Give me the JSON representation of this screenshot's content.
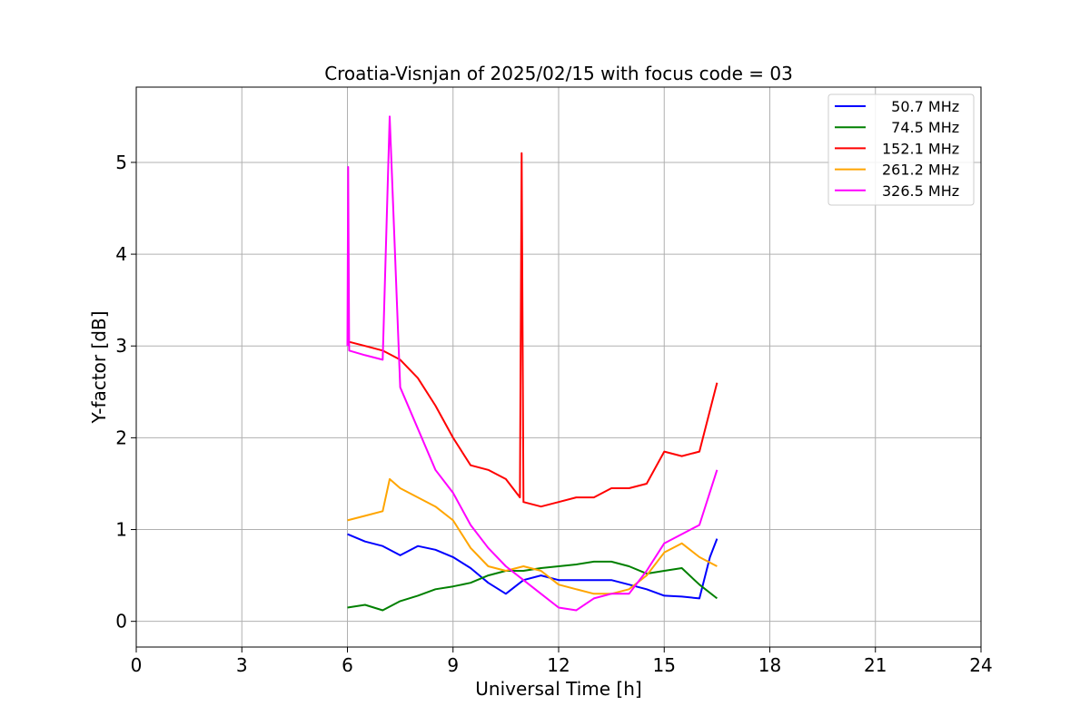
{
  "chart_data": {
    "type": "line",
    "title": "Croatia-Visnjan of 2025/02/15 with focus code = 03",
    "xlabel": "Universal Time [h]",
    "ylabel": "Y-factor [dB]",
    "xlim": [
      0,
      24
    ],
    "ylim": [
      -0.28,
      5.82
    ],
    "xticks": [
      0,
      3,
      6,
      9,
      12,
      15,
      18,
      21,
      24
    ],
    "xtick_labels": [
      "0",
      "3",
      "6",
      "9",
      "12",
      "15",
      "18",
      "21",
      "24"
    ],
    "yticks": [
      0,
      1,
      2,
      3,
      4,
      5
    ],
    "ytick_labels": [
      "0",
      "1",
      "2",
      "3",
      "4",
      "5"
    ],
    "grid": true,
    "legend_position": "top-right",
    "series": [
      {
        "name": "  50.7 MHz",
        "color": "#0000ff",
        "x": [
          6.0,
          6.5,
          7.0,
          7.5,
          8.0,
          8.5,
          9.0,
          9.5,
          10.0,
          10.5,
          11.0,
          11.5,
          12.0,
          12.5,
          13.0,
          13.5,
          14.0,
          14.5,
          15.0,
          15.5,
          16.0,
          16.3,
          16.5
        ],
        "y": [
          0.95,
          0.87,
          0.82,
          0.72,
          0.82,
          0.78,
          0.7,
          0.58,
          0.42,
          0.3,
          0.45,
          0.5,
          0.45,
          0.45,
          0.45,
          0.45,
          0.4,
          0.35,
          0.28,
          0.27,
          0.25,
          0.7,
          0.9
        ]
      },
      {
        "name": "  74.5 MHz",
        "color": "#008000",
        "x": [
          6.0,
          6.5,
          7.0,
          7.5,
          8.0,
          8.5,
          9.0,
          9.5,
          10.0,
          10.5,
          11.0,
          11.5,
          12.0,
          12.5,
          13.0,
          13.5,
          14.0,
          14.5,
          15.0,
          15.5,
          16.0,
          16.5
        ],
        "y": [
          0.15,
          0.18,
          0.12,
          0.22,
          0.28,
          0.35,
          0.38,
          0.42,
          0.5,
          0.55,
          0.55,
          0.58,
          0.6,
          0.62,
          0.65,
          0.65,
          0.6,
          0.52,
          0.55,
          0.58,
          0.4,
          0.25
        ]
      },
      {
        "name": "152.1 MHz",
        "color": "#ff0000",
        "x": [
          6.0,
          6.5,
          7.0,
          7.5,
          8.0,
          8.5,
          9.0,
          9.5,
          10.0,
          10.5,
          10.9,
          10.95,
          11.0,
          11.5,
          12.0,
          12.5,
          13.0,
          13.5,
          14.0,
          14.5,
          15.0,
          15.5,
          16.0,
          16.5
        ],
        "y": [
          3.05,
          3.0,
          2.95,
          2.85,
          2.65,
          2.35,
          2.0,
          1.7,
          1.65,
          1.55,
          1.35,
          5.1,
          1.3,
          1.25,
          1.3,
          1.35,
          1.35,
          1.45,
          1.45,
          1.5,
          1.85,
          1.8,
          1.85,
          2.6
        ]
      },
      {
        "name": "261.2 MHz",
        "color": "#ffa500",
        "x": [
          6.0,
          6.5,
          7.0,
          7.2,
          7.5,
          8.0,
          8.5,
          9.0,
          9.5,
          10.0,
          10.5,
          11.0,
          11.5,
          12.0,
          12.5,
          13.0,
          13.5,
          14.0,
          14.5,
          15.0,
          15.5,
          16.0,
          16.5
        ],
        "y": [
          1.1,
          1.15,
          1.2,
          1.55,
          1.45,
          1.35,
          1.25,
          1.1,
          0.8,
          0.6,
          0.55,
          0.6,
          0.55,
          0.4,
          0.35,
          0.3,
          0.3,
          0.35,
          0.5,
          0.75,
          0.85,
          0.7,
          0.6
        ]
      },
      {
        "name": "326.5 MHz",
        "color": "#ff00ff",
        "x": [
          6.0,
          6.02,
          6.05,
          6.5,
          7.0,
          7.2,
          7.5,
          8.0,
          8.5,
          9.0,
          9.5,
          10.0,
          10.5,
          11.0,
          11.5,
          12.0,
          12.5,
          13.0,
          13.5,
          14.0,
          14.5,
          15.0,
          15.5,
          16.0,
          16.5
        ],
        "y": [
          3.0,
          4.95,
          2.95,
          2.9,
          2.85,
          5.5,
          2.55,
          2.1,
          1.65,
          1.4,
          1.05,
          0.8,
          0.6,
          0.45,
          0.3,
          0.15,
          0.12,
          0.25,
          0.3,
          0.3,
          0.55,
          0.85,
          0.95,
          1.05,
          1.65
        ]
      }
    ]
  }
}
